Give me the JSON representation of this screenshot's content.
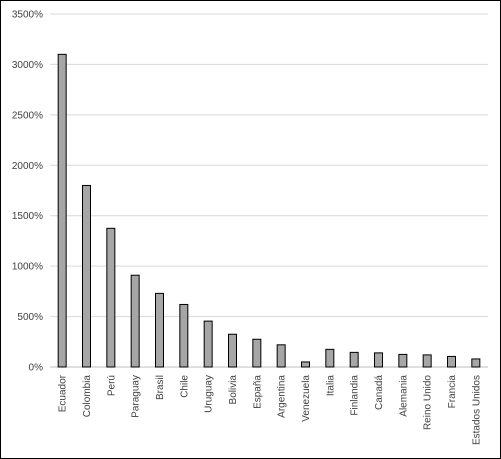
{
  "chart_data": {
    "type": "bar",
    "title": "",
    "xlabel": "",
    "ylabel": "",
    "categories": [
      "Ecuador",
      "Colombia",
      "Perú",
      "Paraguay",
      "Brasil",
      "Chile",
      "Uruguay",
      "Bolivia",
      "España",
      "Argentina",
      "Venezuela",
      "Italia",
      "Finlandia",
      "Canadá",
      "Alemania",
      "Reino Unido",
      "Francia",
      "Estados Unidos"
    ],
    "series": [
      {
        "values": [
          3100,
          1800,
          1375,
          910,
          730,
          620,
          455,
          325,
          275,
          220,
          50,
          175,
          145,
          140,
          125,
          120,
          105,
          80
        ]
      }
    ],
    "ylim": [
      0,
      3500
    ],
    "yticks": [
      0,
      500,
      1000,
      1500,
      2000,
      2500,
      3000,
      3500
    ],
    "ytick_labels": [
      "0%",
      "500%",
      "1000%",
      "1500%",
      "2000%",
      "2500%",
      "3000%",
      "3500%"
    ],
    "grid": true,
    "legend": "none",
    "bar_color": "#a6a6a6",
    "bar_edge_color": "#000000",
    "grid_color": "#d9d9d9"
  }
}
